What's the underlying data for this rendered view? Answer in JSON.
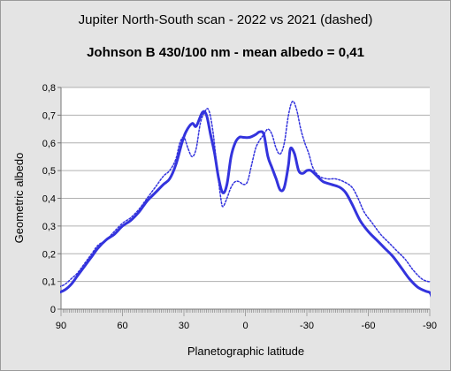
{
  "chart_data": {
    "type": "line",
    "title": "Jupiter North-South scan - 2022 vs 2021 (dashed)",
    "subtitle": "Johnson B 430/100 nm - mean albedo = 0,41",
    "xlabel": "Planetographic latitude",
    "ylabel": "Geometric albedo",
    "xlim": [
      90,
      -90
    ],
    "ylim": [
      0,
      0.8
    ],
    "x_ticks": [
      "90",
      "60",
      "30",
      "0",
      "-30",
      "-60",
      "-90"
    ],
    "y_ticks": [
      "0",
      "0,1",
      "0,2",
      "0,3",
      "0,4",
      "0,5",
      "0,6",
      "0,7",
      "0,8"
    ],
    "grid": "horizontal",
    "series": [
      {
        "style": "solid",
        "color": "#3333dd",
        "points": [
          [
            91,
            0.06
          ],
          [
            88,
            0.07
          ],
          [
            85,
            0.09
          ],
          [
            82,
            0.12
          ],
          [
            78,
            0.16
          ],
          [
            75,
            0.19
          ],
          [
            72,
            0.22
          ],
          [
            68,
            0.25
          ],
          [
            64,
            0.27
          ],
          [
            60,
            0.3
          ],
          [
            56,
            0.32
          ],
          [
            52,
            0.35
          ],
          [
            48,
            0.39
          ],
          [
            44,
            0.42
          ],
          [
            40,
            0.45
          ],
          [
            37,
            0.47
          ],
          [
            34,
            0.52
          ],
          [
            31,
            0.6
          ],
          [
            29,
            0.64
          ],
          [
            26,
            0.67
          ],
          [
            24,
            0.66
          ],
          [
            21,
            0.71
          ],
          [
            19,
            0.7
          ],
          [
            17,
            0.63
          ],
          [
            15,
            0.56
          ],
          [
            13,
            0.47
          ],
          [
            11,
            0.42
          ],
          [
            9,
            0.45
          ],
          [
            7,
            0.55
          ],
          [
            5,
            0.6
          ],
          [
            3,
            0.62
          ],
          [
            1,
            0.62
          ],
          [
            -2,
            0.62
          ],
          [
            -5,
            0.63
          ],
          [
            -7,
            0.64
          ],
          [
            -9,
            0.63
          ],
          [
            -11,
            0.55
          ],
          [
            -13,
            0.51
          ],
          [
            -15,
            0.47
          ],
          [
            -17,
            0.43
          ],
          [
            -19,
            0.44
          ],
          [
            -21,
            0.52
          ],
          [
            -22,
            0.58
          ],
          [
            -24,
            0.56
          ],
          [
            -26,
            0.5
          ],
          [
            -28,
            0.49
          ],
          [
            -30,
            0.5
          ],
          [
            -32,
            0.5
          ],
          [
            -35,
            0.48
          ],
          [
            -38,
            0.46
          ],
          [
            -42,
            0.45
          ],
          [
            -46,
            0.44
          ],
          [
            -49,
            0.42
          ],
          [
            -52,
            0.38
          ],
          [
            -56,
            0.32
          ],
          [
            -60,
            0.28
          ],
          [
            -64,
            0.25
          ],
          [
            -68,
            0.22
          ],
          [
            -72,
            0.19
          ],
          [
            -76,
            0.15
          ],
          [
            -80,
            0.11
          ],
          [
            -84,
            0.08
          ],
          [
            -88,
            0.065
          ],
          [
            -90,
            0.06
          ],
          [
            -91,
            0.045
          ]
        ]
      },
      {
        "style": "dashed",
        "color": "#3333dd",
        "points": [
          [
            91,
            0.08
          ],
          [
            88,
            0.09
          ],
          [
            85,
            0.11
          ],
          [
            82,
            0.13
          ],
          [
            78,
            0.17
          ],
          [
            75,
            0.2
          ],
          [
            72,
            0.23
          ],
          [
            68,
            0.25
          ],
          [
            64,
            0.28
          ],
          [
            60,
            0.31
          ],
          [
            56,
            0.33
          ],
          [
            52,
            0.36
          ],
          [
            48,
            0.4
          ],
          [
            44,
            0.44
          ],
          [
            40,
            0.48
          ],
          [
            37,
            0.5
          ],
          [
            34,
            0.54
          ],
          [
            32,
            0.6
          ],
          [
            30,
            0.62
          ],
          [
            28,
            0.58
          ],
          [
            26,
            0.55
          ],
          [
            24,
            0.58
          ],
          [
            22,
            0.67
          ],
          [
            20,
            0.71
          ],
          [
            18,
            0.72
          ],
          [
            16,
            0.65
          ],
          [
            14,
            0.52
          ],
          [
            12,
            0.4
          ],
          [
            11,
            0.37
          ],
          [
            9,
            0.4
          ],
          [
            7,
            0.44
          ],
          [
            5,
            0.46
          ],
          [
            3,
            0.46
          ],
          [
            1,
            0.45
          ],
          [
            -1,
            0.46
          ],
          [
            -3,
            0.52
          ],
          [
            -5,
            0.58
          ],
          [
            -7,
            0.61
          ],
          [
            -9,
            0.63
          ],
          [
            -11,
            0.65
          ],
          [
            -13,
            0.63
          ],
          [
            -15,
            0.58
          ],
          [
            -17,
            0.56
          ],
          [
            -19,
            0.6
          ],
          [
            -21,
            0.7
          ],
          [
            -23,
            0.75
          ],
          [
            -25,
            0.72
          ],
          [
            -27,
            0.65
          ],
          [
            -29,
            0.6
          ],
          [
            -31,
            0.56
          ],
          [
            -33,
            0.51
          ],
          [
            -36,
            0.48
          ],
          [
            -40,
            0.47
          ],
          [
            -44,
            0.47
          ],
          [
            -48,
            0.46
          ],
          [
            -52,
            0.44
          ],
          [
            -55,
            0.4
          ],
          [
            -58,
            0.35
          ],
          [
            -62,
            0.31
          ],
          [
            -66,
            0.27
          ],
          [
            -70,
            0.24
          ],
          [
            -74,
            0.21
          ],
          [
            -78,
            0.18
          ],
          [
            -82,
            0.14
          ],
          [
            -86,
            0.11
          ],
          [
            -89,
            0.1
          ],
          [
            -91,
            0.1
          ]
        ]
      }
    ]
  }
}
